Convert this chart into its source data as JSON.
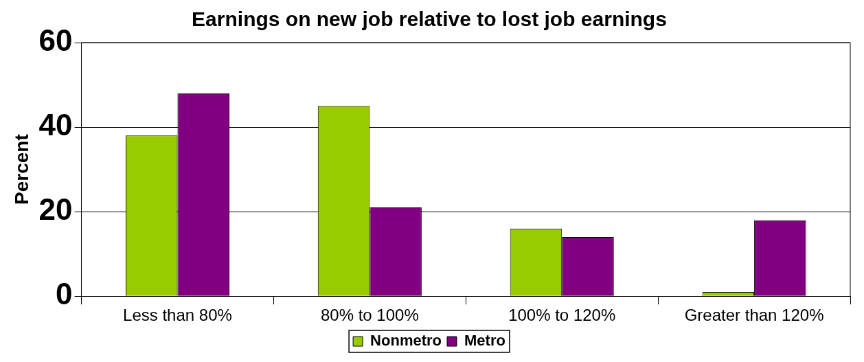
{
  "chart_data": {
    "type": "bar",
    "title": "Earnings on new job relative to lost job earnings",
    "ylabel": "Percent",
    "categories": [
      "Less than 80%",
      "80% to 100%",
      "100% to 120%",
      "Greater than 120%"
    ],
    "series": [
      {
        "name": "Nonmetro",
        "color": "#99cc00",
        "values": [
          38,
          45,
          16,
          1
        ]
      },
      {
        "name": "Metro",
        "color": "#800080",
        "values": [
          48,
          21,
          14,
          18
        ]
      }
    ],
    "ylim": [
      0,
      60
    ],
    "yticks": [
      0,
      20,
      40,
      60
    ],
    "grid": "y",
    "legend": "bottom"
  }
}
